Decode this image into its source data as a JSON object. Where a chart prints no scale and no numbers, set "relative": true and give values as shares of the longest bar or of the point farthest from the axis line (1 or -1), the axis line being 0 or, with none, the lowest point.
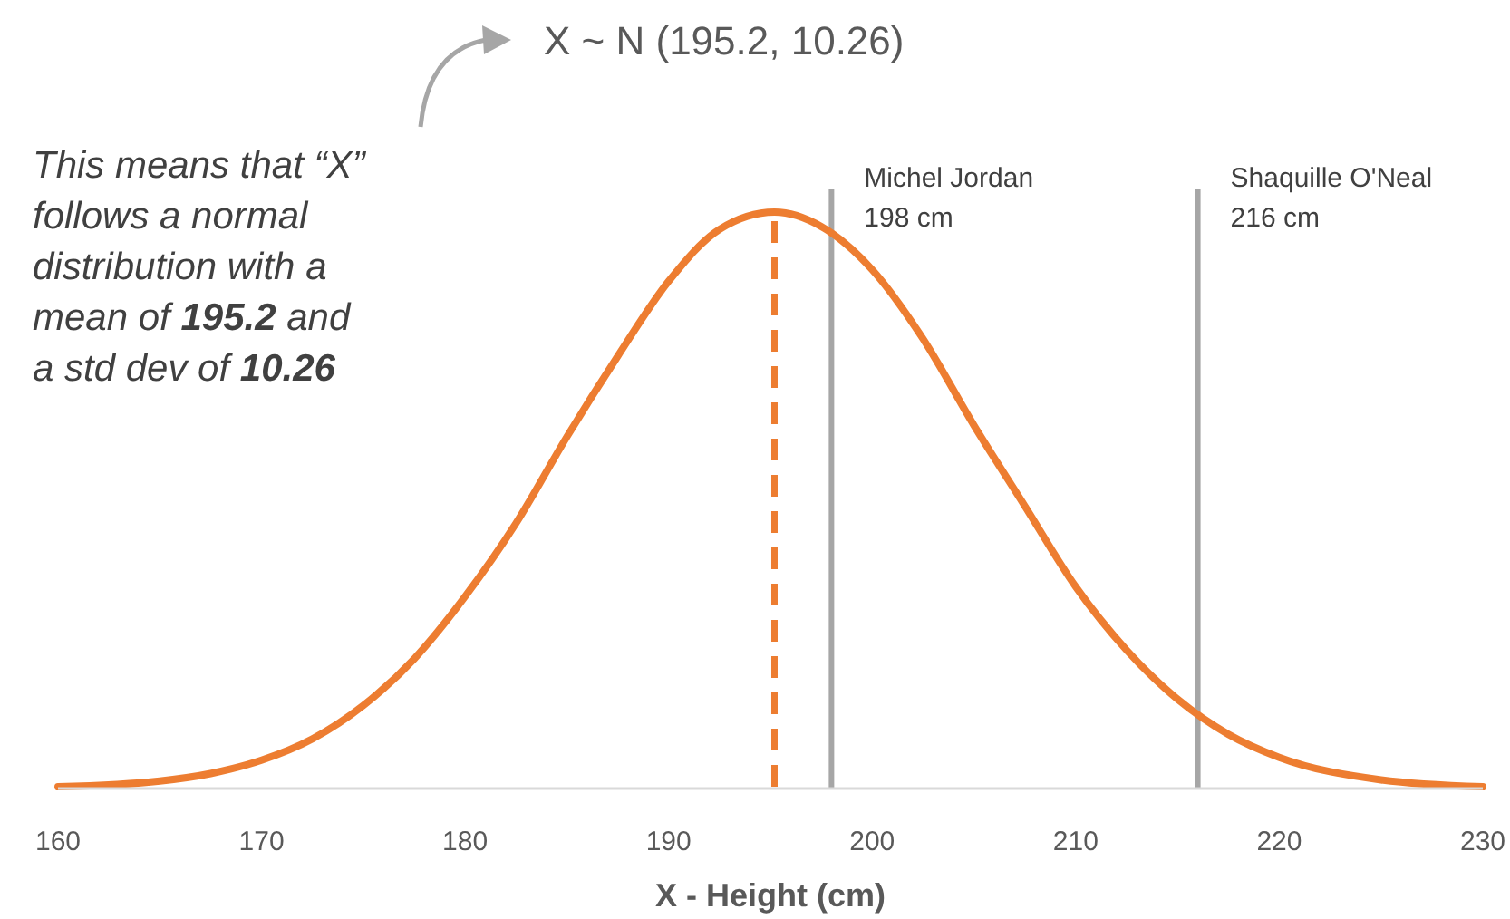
{
  "chart_data": {
    "type": "line",
    "title": "X ~ N (195.2, 10.26)",
    "xlabel": "X - Height (cm)",
    "relative": true,
    "x": [
      160,
      165,
      167.5,
      170,
      172.5,
      175,
      177.5,
      180,
      182.5,
      185,
      187.5,
      190,
      192.5,
      195.2,
      197.5,
      200,
      202.5,
      205,
      207.5,
      210,
      212.5,
      215,
      217.5,
      220,
      225,
      230
    ],
    "series": [
      {
        "color": "#ed7d31",
        "values": [
          0.003,
          0.013,
          0.026,
          0.049,
          0.086,
          0.144,
          0.225,
          0.333,
          0.46,
          0.61,
          0.75,
          0.88,
          0.97,
          1,
          0.975,
          0.9,
          0.78,
          0.63,
          0.49,
          0.35,
          0.24,
          0.155,
          0.094,
          0.054,
          0.015,
          0.003
        ]
      }
    ],
    "xlim": [
      160,
      230
    ],
    "xticks": [
      160,
      170,
      180,
      190,
      200,
      210,
      220,
      230
    ],
    "grid": false,
    "line_style": "solid",
    "marker": "none",
    "ref_lines": [
      {
        "axis": "x",
        "value": 195.2,
        "label": null,
        "color": "#ed7d31",
        "line_style": "dashed"
      },
      {
        "axis": "x",
        "value": 198,
        "label": "Michel Jordan\n198 cm",
        "color": "#a6a6a6",
        "line_style": "solid"
      },
      {
        "axis": "x",
        "value": 216,
        "label": "Shaquille O'Neal\n216 cm",
        "color": "#a6a6a6",
        "line_style": "solid"
      }
    ],
    "annotations": [
      "This means that “X”\nfollows a normal\ndistribution with a\nmean of 195.2 and\na std dev of 10.26"
    ]
  }
}
